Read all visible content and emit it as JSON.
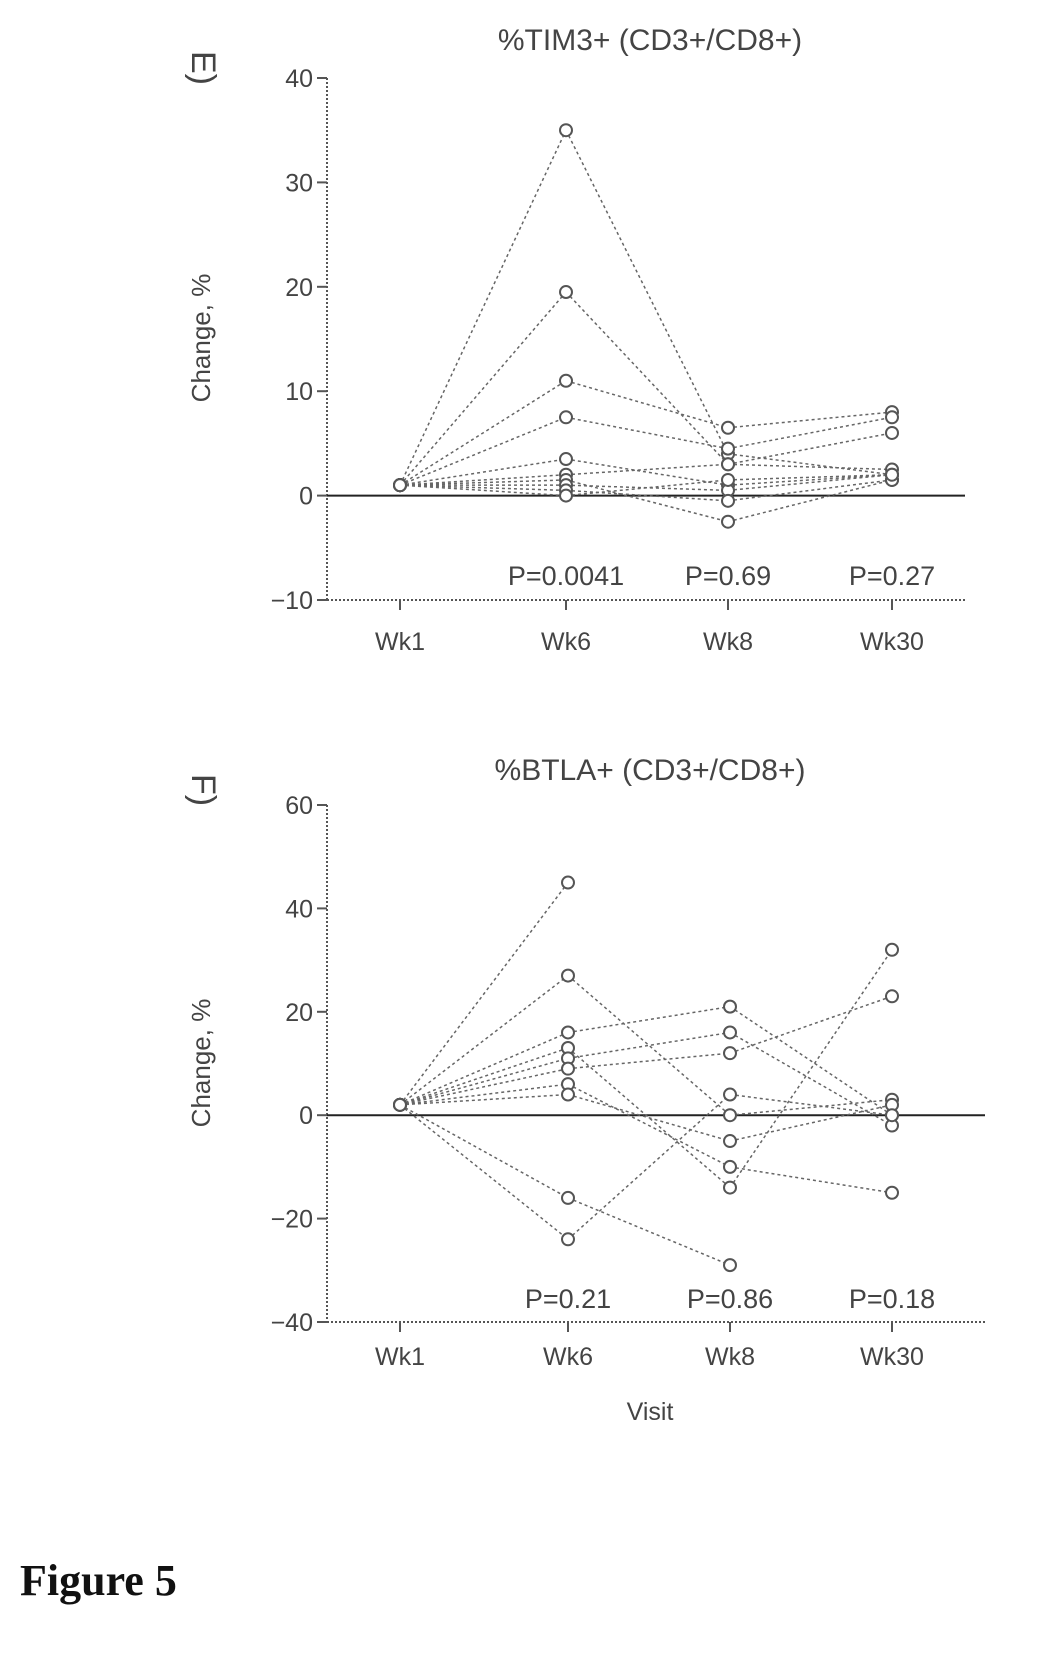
{
  "figure_caption": "Figure 5",
  "chart_data": [
    {
      "type": "line",
      "panel_label": "E)",
      "title": "%TIM3+ (CD3+/CD8+)",
      "ylabel": "Change, %",
      "xlabel": "",
      "categories": [
        "Wk1",
        "Wk6",
        "Wk8",
        "Wk30"
      ],
      "ylim": [
        -10,
        40
      ],
      "yticks": [
        -10,
        0,
        10,
        20,
        30,
        40
      ],
      "p_values": [
        "",
        "P=0.0041",
        "P=0.69",
        "P=0.27"
      ],
      "series": [
        {
          "values": [
            1,
            35,
            4,
            2
          ]
        },
        {
          "values": [
            1,
            19.5,
            3,
            6
          ]
        },
        {
          "values": [
            1,
            11,
            6.5,
            8
          ]
        },
        {
          "values": [
            1,
            7.5,
            4.5,
            7.5
          ]
        },
        {
          "values": [
            1,
            3.5,
            1,
            2
          ]
        },
        {
          "values": [
            1,
            2,
            3,
            2.5
          ]
        },
        {
          "values": [
            1,
            1.5,
            -2.5,
            1.5
          ]
        },
        {
          "values": [
            1,
            1,
            0.5,
            2
          ]
        },
        {
          "values": [
            1,
            0.5,
            -0.5,
            1.5
          ]
        },
        {
          "values": [
            1,
            0,
            1.5,
            2
          ]
        }
      ]
    },
    {
      "type": "line",
      "panel_label": "F)",
      "title": "%BTLA+ (CD3+/CD8+)",
      "ylabel": "Change, %",
      "xlabel": "Visit",
      "categories": [
        "Wk1",
        "Wk6",
        "Wk8",
        "Wk30"
      ],
      "ylim": [
        -40,
        60
      ],
      "yticks": [
        -40,
        -20,
        0,
        20,
        40,
        60
      ],
      "p_values": [
        "",
        "P=0.21",
        "P=0.86",
        "P=0.18"
      ],
      "series": [
        {
          "values": [
            2,
            45,
            null,
            null
          ]
        },
        {
          "values": [
            2,
            27,
            0,
            3
          ]
        },
        {
          "values": [
            2,
            16,
            21,
            0
          ]
        },
        {
          "values": [
            2,
            13,
            -14,
            32
          ]
        },
        {
          "values": [
            2,
            11,
            16,
            -2
          ]
        },
        {
          "values": [
            2,
            9,
            12,
            23
          ]
        },
        {
          "values": [
            2,
            6,
            -10,
            -15
          ]
        },
        {
          "values": [
            2,
            4,
            -5,
            2
          ]
        },
        {
          "values": [
            2,
            -16,
            -29,
            null
          ]
        },
        {
          "values": [
            2,
            -24,
            4,
            0
          ]
        }
      ]
    }
  ]
}
